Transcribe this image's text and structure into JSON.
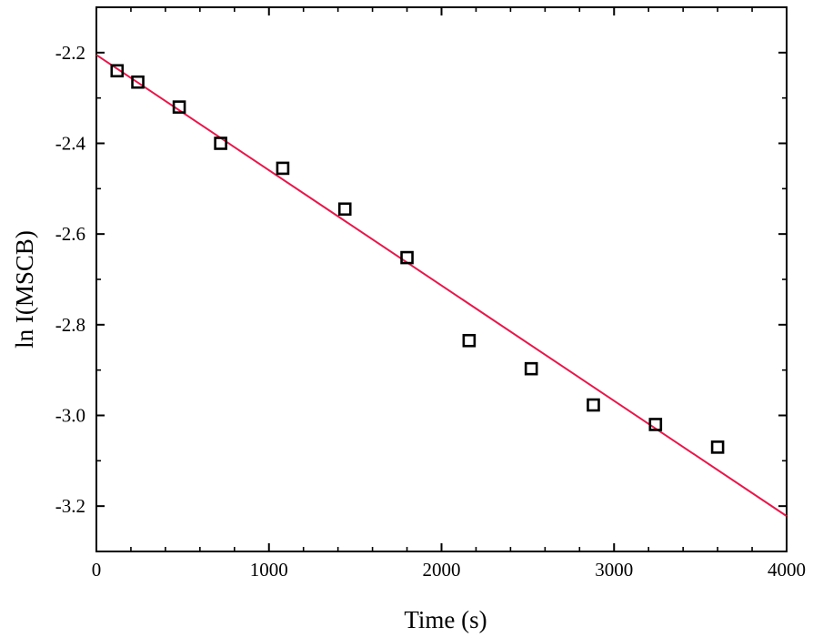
{
  "chart_data": {
    "type": "scatter",
    "title": "",
    "xlabel": "Time (s)",
    "ylabel": "ln I(MSCB)",
    "xlim": [
      0,
      4000
    ],
    "ylim": [
      -3.3,
      -2.1
    ],
    "grid": false,
    "legend": "none",
    "x_ticks": [
      "0",
      "1000",
      "2000",
      "3000",
      "4000"
    ],
    "y_ticks": [
      "-2.2",
      "-2.4",
      "-2.6",
      "-2.8",
      "-3.0",
      "-3.2"
    ],
    "series": [
      {
        "marker": "open-square",
        "color": "#000000",
        "points": [
          {
            "x": 120,
            "y": -2.24
          },
          {
            "x": 240,
            "y": -2.265
          },
          {
            "x": 480,
            "y": -2.32
          },
          {
            "x": 720,
            "y": -2.4
          },
          {
            "x": 1080,
            "y": -2.455
          },
          {
            "x": 1440,
            "y": -2.545
          },
          {
            "x": 1800,
            "y": -2.652
          },
          {
            "x": 2160,
            "y": -2.835
          },
          {
            "x": 2520,
            "y": -2.897
          },
          {
            "x": 2880,
            "y": -2.977
          },
          {
            "x": 3240,
            "y": -3.02
          },
          {
            "x": 3600,
            "y": -3.07
          }
        ]
      }
    ],
    "fit_line": {
      "color": "#e8174a",
      "x": [
        0,
        4000
      ],
      "y": [
        -2.205,
        -3.222
      ]
    }
  }
}
